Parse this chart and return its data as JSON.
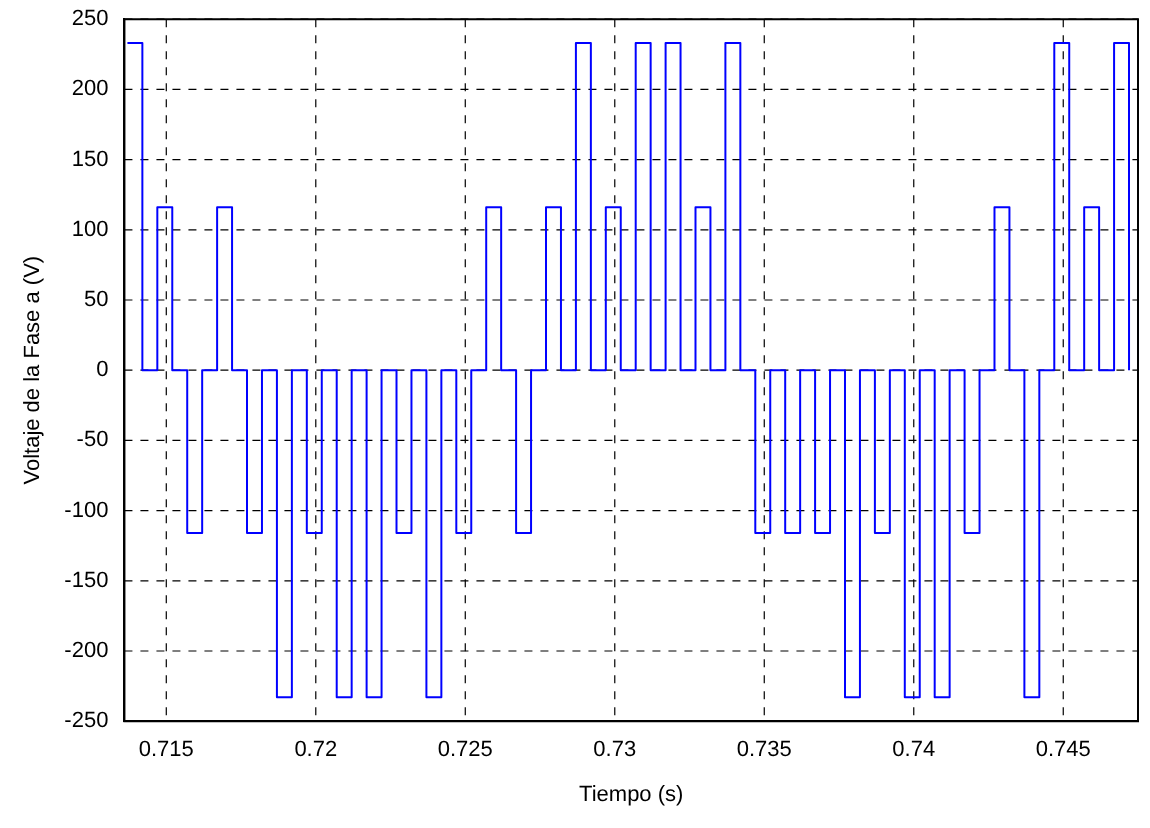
{
  "chart_data": {
    "type": "step",
    "xlabel": "Tiempo (s)",
    "ylabel": "Voltaje de la Fase a (V)",
    "xlim": [
      0.7136,
      0.7475
    ],
    "xticks": [
      0.715,
      0.72,
      0.725,
      0.73,
      0.735,
      0.74,
      0.745
    ],
    "ylim": [
      -250,
      250
    ],
    "yticks": [
      -250,
      -200,
      -150,
      -100,
      -50,
      0,
      50,
      100,
      150,
      200,
      250
    ],
    "grid": true,
    "legend": false,
    "marker": "none",
    "line_style": "solid",
    "x": [
      0.7137,
      0.7142,
      0.7147,
      0.7152,
      0.7157,
      0.7162,
      0.7167,
      0.7172,
      0.7177,
      0.7182,
      0.7187,
      0.7192,
      0.7197,
      0.7202,
      0.7207,
      0.7212,
      0.7217,
      0.7222,
      0.7227,
      0.7232,
      0.7237,
      0.7242,
      0.7247,
      0.7252,
      0.7257,
      0.7262,
      0.7267,
      0.7272,
      0.7277,
      0.7282,
      0.7287,
      0.7292,
      0.7297,
      0.7302,
      0.7307,
      0.7312,
      0.7317,
      0.7322,
      0.7327,
      0.7332,
      0.7337,
      0.7342,
      0.7347,
      0.7352,
      0.7357,
      0.7362,
      0.7367,
      0.7372,
      0.7377,
      0.7382,
      0.7387,
      0.7392,
      0.7397,
      0.7402,
      0.7407,
      0.7412,
      0.7417,
      0.7422,
      0.7427,
      0.7432,
      0.7437,
      0.7442,
      0.7447,
      0.7452,
      0.7457,
      0.7462,
      0.7467,
      0.7472
    ],
    "series": [
      {
        "color": "#0000ff",
        "values": [
          233,
          0,
          116,
          0,
          -116,
          0,
          116,
          0,
          -116,
          0,
          -233,
          0,
          -116,
          0,
          -233,
          0,
          -233,
          0,
          -116,
          0,
          -233,
          0,
          -116,
          0,
          116,
          0,
          -116,
          0,
          116,
          0,
          233,
          0,
          116,
          0,
          233,
          0,
          233,
          0,
          116,
          0,
          233,
          0,
          -116,
          0,
          -116,
          0,
          -116,
          0,
          -233,
          0,
          -116,
          0,
          -233,
          0,
          -233,
          0,
          -116,
          0,
          116,
          0,
          -233,
          0,
          233,
          0,
          116,
          0,
          233,
          0
        ]
      }
    ]
  }
}
